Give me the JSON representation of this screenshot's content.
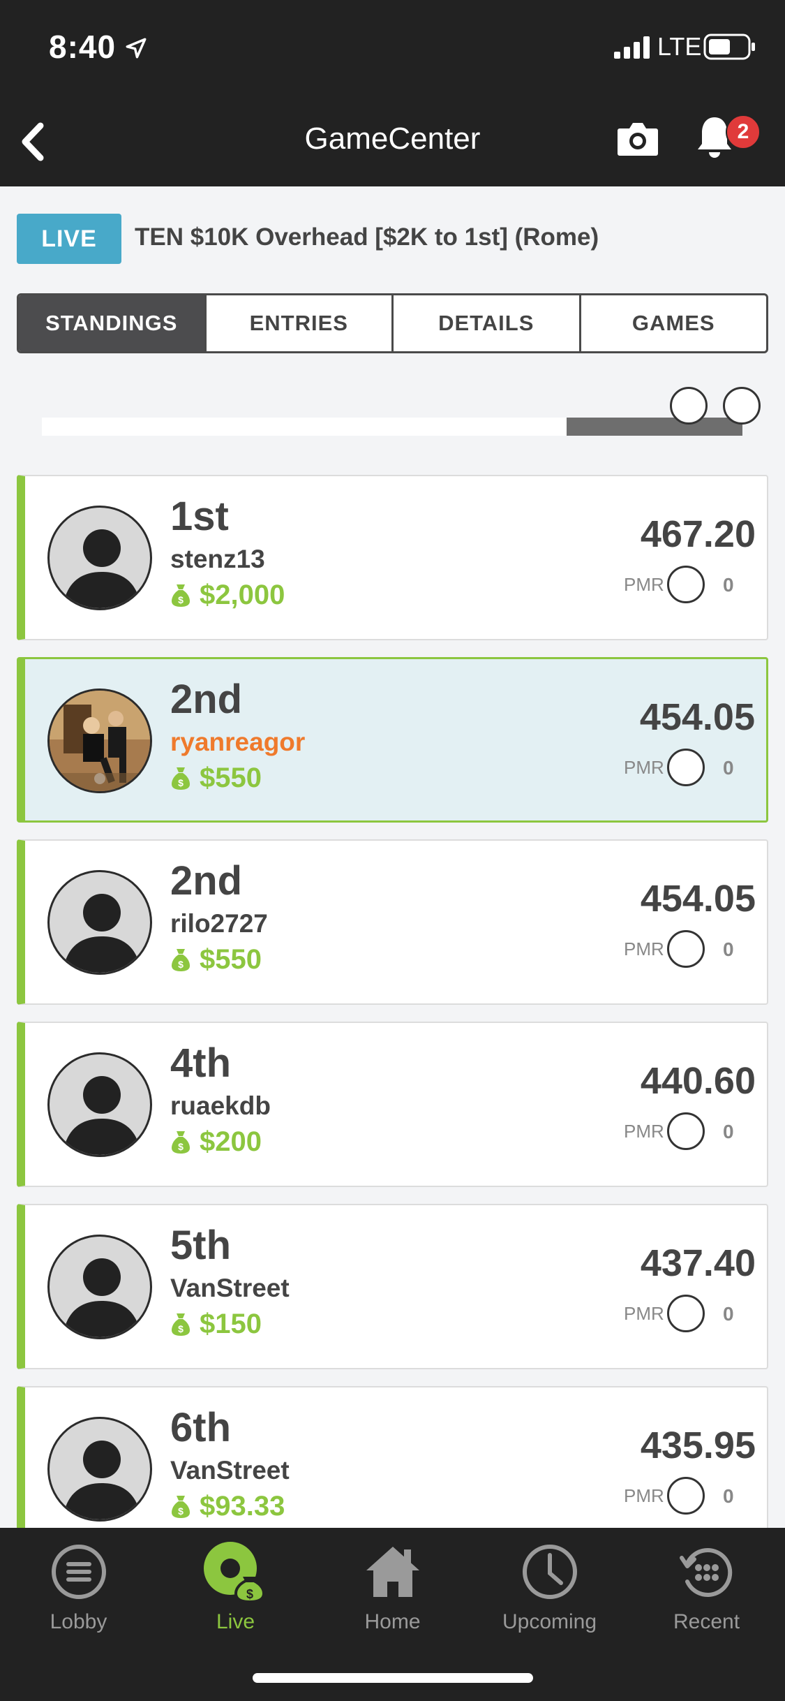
{
  "status_bar": {
    "time": "8:40",
    "network": "LTE"
  },
  "nav": {
    "title": "GameCenter",
    "notification_count": "2"
  },
  "contest": {
    "live_label": "LIVE",
    "title": "TEN $10K Overhead [$2K to 1st] (Rome)"
  },
  "tabs": [
    {
      "label": "STANDINGS",
      "active": true
    },
    {
      "label": "ENTRIES",
      "active": false
    },
    {
      "label": "DETAILS",
      "active": false
    },
    {
      "label": "GAMES",
      "active": false
    }
  ],
  "standings": [
    {
      "rank": "1st",
      "username": "stenz13",
      "prize": "$2,000",
      "score": "467.20",
      "pmr_label": "PMR",
      "pmr": "0"
    },
    {
      "rank": "2nd",
      "username": "ryanreagor",
      "prize": "$550",
      "score": "454.05",
      "pmr_label": "PMR",
      "pmr": "0"
    },
    {
      "rank": "2nd",
      "username": "rilo2727",
      "prize": "$550",
      "score": "454.05",
      "pmr_label": "PMR",
      "pmr": "0"
    },
    {
      "rank": "4th",
      "username": "ruaekdb",
      "prize": "$200",
      "score": "440.60",
      "pmr_label": "PMR",
      "pmr": "0"
    },
    {
      "rank": "5th",
      "username": "VanStreet",
      "prize": "$150",
      "score": "437.40",
      "pmr_label": "PMR",
      "pmr": "0"
    },
    {
      "rank": "6th",
      "username": "VanStreet",
      "prize": "$93.33",
      "score": "435.95",
      "pmr_label": "PMR",
      "pmr": "0"
    }
  ],
  "bottom_tabs": [
    {
      "label": "Lobby",
      "icon": "lobby-icon",
      "active": false
    },
    {
      "label": "Live",
      "icon": "live-icon",
      "active": true
    },
    {
      "label": "Home",
      "icon": "home-icon",
      "active": false
    },
    {
      "label": "Upcoming",
      "icon": "clock-icon",
      "active": false
    },
    {
      "label": "Recent",
      "icon": "recent-icon",
      "active": false
    }
  ],
  "colors": {
    "accent_green": "#8cc63f",
    "live_blue": "#48a9c9",
    "me_orange": "#ef7a2c",
    "badge_red": "#e03a3a"
  }
}
